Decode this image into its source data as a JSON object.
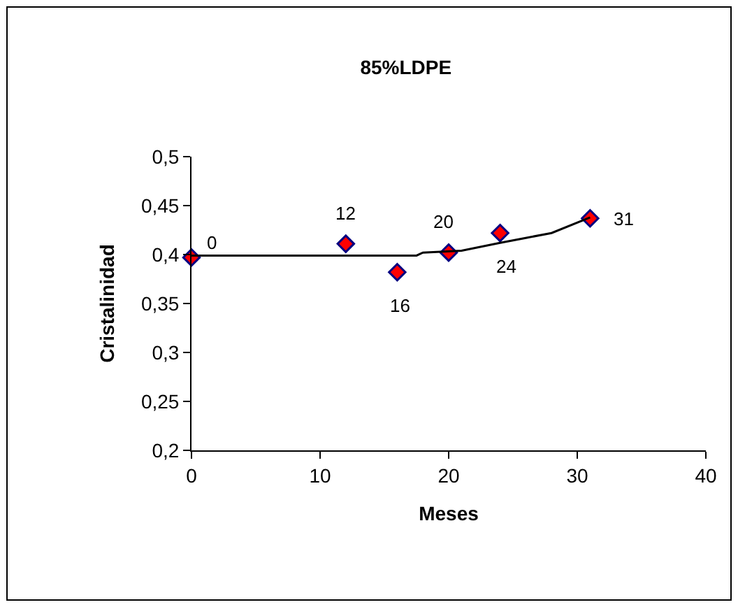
{
  "chart_data": {
    "type": "scatter",
    "title": "85%LDPE",
    "xlabel": "Meses",
    "ylabel": "Cristalinidad",
    "marker": "diamond",
    "series": [
      {
        "color": "#ff0000",
        "x": [
          0,
          12,
          16,
          20,
          24,
          31
        ],
        "values": [
          0.397,
          0.411,
          0.382,
          0.402,
          0.422,
          0.437
        ]
      },
      {
        "type": "line",
        "color": "#000000",
        "marker": "none",
        "x": [
          0,
          17.5,
          18,
          21,
          24,
          26,
          28,
          31
        ],
        "values": [
          0.399,
          0.399,
          0.402,
          0.404,
          0.412,
          0.417,
          0.422,
          0.438
        ]
      }
    ],
    "xlim": [
      0,
      40
    ],
    "xticks": [
      0,
      10,
      20,
      30,
      40
    ],
    "ylim": [
      0.2,
      0.5
    ],
    "yticks": [
      {
        "value": 0.2,
        "label": "0,2"
      },
      {
        "value": 0.25,
        "label": "0,25"
      },
      {
        "value": 0.3,
        "label": "0,3"
      },
      {
        "value": 0.35,
        "label": "0,35"
      },
      {
        "value": 0.4,
        "label": "0,4"
      },
      {
        "value": 0.45,
        "label": "0,45"
      },
      {
        "value": 0.5,
        "label": "0,5"
      }
    ],
    "annotations": [
      {
        "text": "0",
        "x": 0,
        "y": 0.397
      },
      {
        "text": "12",
        "x": 12,
        "y": 0.411
      },
      {
        "text": "16",
        "x": 16,
        "y": 0.382
      },
      {
        "text": "20",
        "x": 20,
        "y": 0.402
      },
      {
        "text": "24",
        "x": 24,
        "y": 0.422
      },
      {
        "text": "31",
        "x": 31,
        "y": 0.437
      }
    ]
  }
}
